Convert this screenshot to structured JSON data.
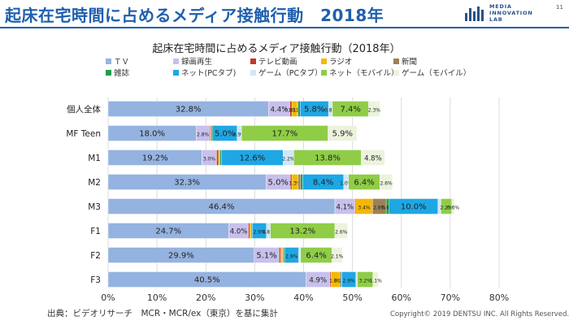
{
  "header": {
    "title": "起床在宅時間に占めるメディア接触行動　2018年",
    "logo_lines": [
      "MEDIA",
      "INNOVATION",
      "LAB"
    ],
    "page_number": "11"
  },
  "footer": {
    "source": "出典：ビデオリサーチ　MCR・MCR/ex（東京）を基に集計",
    "copyright": "Copyright© 2019 DENTSU INC. All Rights Reserved."
  },
  "chart_data": {
    "type": "bar",
    "orientation": "horizontal",
    "stacked": true,
    "title": "起床在宅時間に占めるメディア接触行動（2018年）",
    "categories": [
      "個人全体",
      "MF Teen",
      "M1",
      "M2",
      "M3",
      "F1",
      "F2",
      "F3"
    ],
    "xlim": [
      0,
      80
    ],
    "xticks": [
      "0%",
      "10%",
      "20%",
      "30%",
      "40%",
      "50%",
      "60%",
      "70%",
      "80%"
    ],
    "grid": true,
    "legend_position": "top",
    "series": [
      {
        "name": "ＴＶ",
        "color": "#95b3e0",
        "values": [
          32.8,
          18.0,
          19.2,
          32.3,
          46.4,
          24.7,
          29.9,
          40.5
        ],
        "labels": [
          "32.8%",
          "18.0%",
          "19.2%",
          "32.3%",
          "46.4%",
          "24.7%",
          "29.9%",
          "40.5%"
        ]
      },
      {
        "name": "録画再生",
        "color": "#c7c0ec",
        "values": [
          4.4,
          2.8,
          3.0,
          5.0,
          4.1,
          4.0,
          5.1,
          4.9
        ],
        "labels": [
          "4.4%",
          "2.8%",
          "3.0%",
          "5.0%",
          "4.1%",
          "4.0%",
          "5.1%",
          "4.9%"
        ]
      },
      {
        "name": "テレビ動画",
        "color": "#c0392b",
        "values": [
          0.4,
          0.2,
          0.4,
          0.3,
          0.2,
          0.3,
          0.3,
          0.2
        ],
        "labels": [
          "0.4%",
          "",
          "",
          "",
          "",
          "",
          "",
          ""
        ]
      },
      {
        "name": "ラジオ",
        "color": "#f5b800",
        "values": [
          1.1,
          0.1,
          0.3,
          1.3,
          3.4,
          0.3,
          0.4,
          1.8
        ],
        "labels": [
          "1.1%",
          "",
          "",
          "1.3%",
          "3.4%",
          "",
          "",
          "1.8%"
        ]
      },
      {
        "name": "新聞",
        "color": "#9c8155",
        "values": [
          0.2,
          0.0,
          0.0,
          0.5,
          2.8,
          0.0,
          0.2,
          0.2
        ],
        "labels": [
          "0.2%",
          "",
          "",
          "",
          "2.8%",
          "",
          "",
          "0.2%"
        ]
      },
      {
        "name": "雑誌",
        "color": "#1e9e4a",
        "values": [
          0.4,
          0.3,
          0.3,
          0.4,
          0.6,
          0.2,
          0.2,
          0.2
        ],
        "labels": [
          "",
          "",
          "",
          "",
          "0.6%",
          "",
          "",
          ""
        ]
      },
      {
        "name": "ネット(PCタブ)",
        "color": "#1ea7e4",
        "values": [
          5.8,
          5.0,
          12.6,
          8.4,
          10.0,
          2.9,
          2.9,
          2.9
        ],
        "labels": [
          "5.8%",
          "5.0%",
          "12.6%",
          "8.4%",
          "10.0%",
          "2.9%",
          "2.9%",
          "2.9%"
        ]
      },
      {
        "name": "ゲーム（PCタブ）",
        "color": "#d3e6f6",
        "values": [
          0.8,
          0.9,
          2.2,
          1.0,
          0.6,
          0.8,
          0.4,
          0.3
        ],
        "labels": [
          "0.8%",
          "0.9%",
          "2.2%",
          "1.0%",
          "",
          "0.8%",
          "",
          ""
        ]
      },
      {
        "name": "ネット（モバイル）",
        "color": "#8fcd47",
        "values": [
          7.4,
          17.7,
          13.8,
          6.4,
          2.2,
          13.2,
          6.4,
          3.2
        ],
        "labels": [
          "7.4%",
          "17.7%",
          "13.8%",
          "6.4%",
          "2.2%",
          "13.2%",
          "6.4%",
          "3.2%"
        ]
      },
      {
        "name": "ゲーム（モバイル）",
        "color": "#ecf3dd",
        "values": [
          2.3,
          5.9,
          4.8,
          2.6,
          0.6,
          2.6,
          2.1,
          1.1
        ],
        "labels": [
          "2.3%",
          "5.9%",
          "4.8%",
          "2.6%",
          "0.6%",
          "2.6%",
          "2.1%",
          "1.1%"
        ]
      }
    ]
  }
}
